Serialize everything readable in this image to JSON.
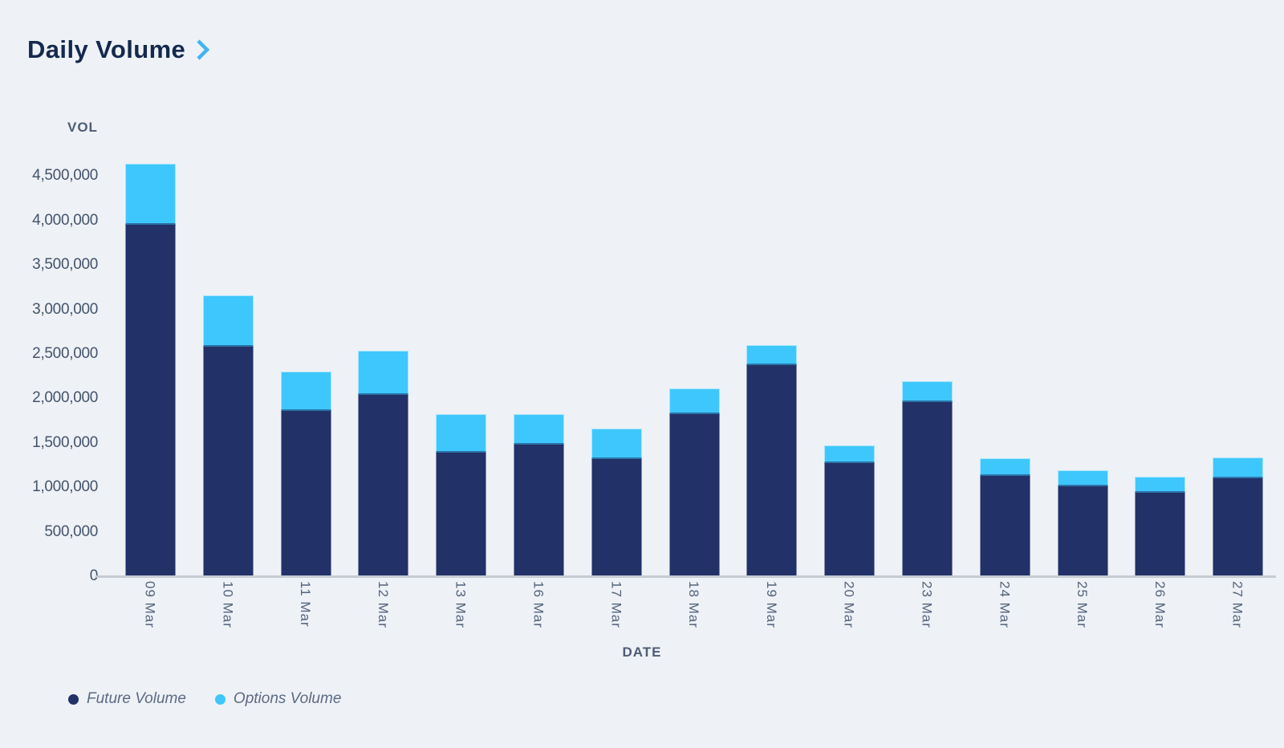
{
  "title": "Daily Volume",
  "colors": {
    "background": "#eef1f6",
    "future": "#223167",
    "options": "#3ec7fc",
    "title_text": "#14294d",
    "chevron": "#41b4f1",
    "axis_title_text": "#4d5d73",
    "tick_text": "#44546a",
    "x_tick_text": "#54647b",
    "legend_text": "#5b6b82",
    "baseline": "#c7ccd3"
  },
  "icons": {
    "title_chevron": "chevron-right-icon"
  },
  "chart_data": {
    "type": "bar",
    "stacked": true,
    "title": "Daily Volume",
    "xlabel": "DATE",
    "ylabel": "VOL",
    "grid": false,
    "legend_position": "bottom-left",
    "categories": [
      "09 Mar",
      "10 Mar",
      "11 Mar",
      "12 Mar",
      "13 Mar",
      "16 Mar",
      "17 Mar",
      "18 Mar",
      "19 Mar",
      "20 Mar",
      "23 Mar",
      "24 Mar",
      "25 Mar",
      "26 Mar",
      "27 Mar"
    ],
    "series": [
      {
        "name": "Future Volume",
        "color": "#223167",
        "values": [
          3950000,
          2580000,
          1860000,
          2040000,
          1390000,
          1480000,
          1320000,
          1820000,
          2370000,
          1270000,
          1960000,
          1130000,
          1010000,
          940000,
          1100000
        ]
      },
      {
        "name": "Options Volume",
        "color": "#3ec7fc",
        "values": [
          690000,
          580000,
          440000,
          500000,
          430000,
          340000,
          340000,
          290000,
          230000,
          200000,
          230000,
          200000,
          180000,
          180000,
          240000
        ]
      }
    ],
    "totals": [
      4640000,
      3160000,
      2300000,
      2540000,
      1820000,
      1820000,
      1660000,
      2110000,
      2600000,
      1470000,
      2190000,
      1330000,
      1190000,
      1120000,
      1340000
    ],
    "y_ticks": {
      "labels": [
        "0",
        "500,000",
        "1,000,000",
        "1,500,000",
        "2,000,000",
        "2,500,000",
        "3,000,000",
        "3,500,000",
        "4,000,000",
        "4,500,000"
      ],
      "values": [
        0,
        500000,
        1000000,
        1500000,
        2000000,
        2500000,
        3000000,
        3500000,
        4000000,
        4500000
      ]
    },
    "ylim": [
      0,
      5100000
    ]
  },
  "legend": [
    {
      "label": "Future Volume",
      "color": "#223167"
    },
    {
      "label": "Options Volume",
      "color": "#3ec7fc"
    }
  ]
}
